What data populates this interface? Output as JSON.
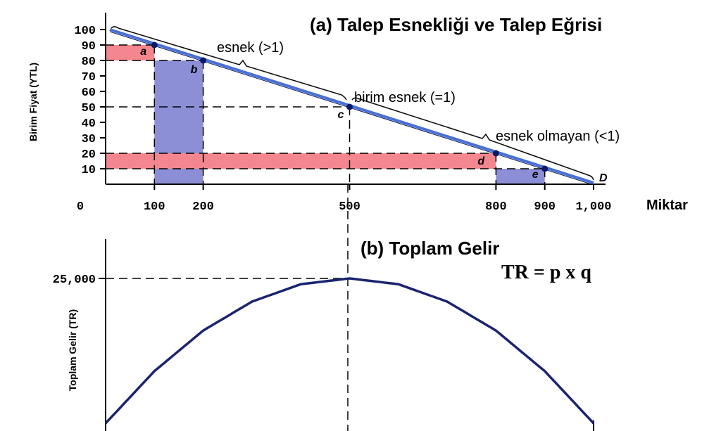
{
  "chart_data": [
    {
      "type": "line",
      "title": "(a) Talep Esnekliği ve Talep Eğrisi",
      "ylabel": "Birim Fiyat (YTL)",
      "xlabel": "Miktar",
      "xlim": [
        0,
        1000
      ],
      "ylim": [
        0,
        100
      ],
      "x_ticks": [
        {
          "value": 0,
          "label": "0"
        },
        {
          "value": 100,
          "label": "100"
        },
        {
          "value": 200,
          "label": "200"
        },
        {
          "value": 500,
          "label": "500"
        },
        {
          "value": 800,
          "label": "800"
        },
        {
          "value": 900,
          "label": "900"
        },
        {
          "value": 1000,
          "label": "1,000"
        }
      ],
      "y_ticks": [
        {
          "value": 10,
          "label": "10"
        },
        {
          "value": 20,
          "label": "20"
        },
        {
          "value": 30,
          "label": "30"
        },
        {
          "value": 40,
          "label": "40"
        },
        {
          "value": 50,
          "label": "50"
        },
        {
          "value": 60,
          "label": "60"
        },
        {
          "value": 70,
          "label": "70"
        },
        {
          "value": 80,
          "label": "80"
        },
        {
          "value": 90,
          "label": "90"
        },
        {
          "value": 100,
          "label": "100"
        }
      ],
      "series": [
        {
          "name": "D",
          "x": [
            0,
            1000
          ],
          "y": [
            100,
            0
          ]
        }
      ],
      "points": [
        {
          "label": "a",
          "x": 100,
          "y": 90
        },
        {
          "label": "b",
          "x": 200,
          "y": 80
        },
        {
          "label": "c",
          "x": 500,
          "y": 50
        },
        {
          "label": "d",
          "x": 800,
          "y": 20
        },
        {
          "label": "e",
          "x": 900,
          "y": 10
        }
      ],
      "shaded_areas": [
        {
          "color": "pink",
          "x": [
            0,
            100
          ],
          "y": [
            80,
            90
          ]
        },
        {
          "color": "lavender",
          "x": [
            100,
            200
          ],
          "y": [
            0,
            80
          ]
        },
        {
          "color": "pink",
          "x": [
            0,
            800
          ],
          "y": [
            10,
            20
          ]
        },
        {
          "color": "lavender",
          "x": [
            800,
            900
          ],
          "y": [
            0,
            10
          ]
        }
      ],
      "annotations": [
        {
          "text": "esnek (>1)"
        },
        {
          "text": "birim esnek (=1)"
        },
        {
          "text": "esnek olmayan (<1)"
        }
      ]
    },
    {
      "type": "line",
      "title": "(b) Toplam Gelir",
      "ylabel": "Toplam Gelir (TR)",
      "formula": "TR = p x q",
      "xlim": [
        0,
        1000
      ],
      "ylim": [
        0,
        25000
      ],
      "y_ticks": [
        {
          "value": 25000,
          "label": "25,000"
        }
      ],
      "series": [
        {
          "name": "",
          "x": [
            0,
            100,
            200,
            300,
            400,
            500,
            600,
            700,
            800,
            900,
            1000
          ],
          "y": [
            0,
            9000,
            16000,
            21000,
            24000,
            25000,
            24000,
            21000,
            16000,
            9000,
            0
          ]
        }
      ]
    }
  ],
  "colors": {
    "demand_line": "#4a6fd6",
    "point": "#0a1a66",
    "pink_area": "#f4868f",
    "lavender_area": "#8d8fd6",
    "tr_curve": "#1a2470"
  }
}
